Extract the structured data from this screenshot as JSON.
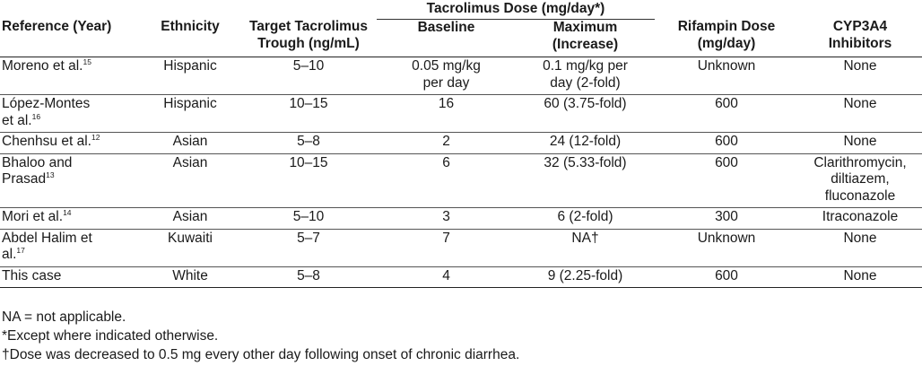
{
  "headers": {
    "reference": "Reference (Year)",
    "ethnicity": "Ethnicity",
    "target": "Target Tacrolimus Trough (ng/mL)",
    "dose_group": "Tacrolimus Dose (mg/day*)",
    "baseline": "Baseline",
    "maximum": "Maximum (Increase)",
    "rifampin": "Rifampin Dose (mg/day)",
    "cyp": "CYP3A4 Inhibitors"
  },
  "rows": [
    {
      "ref": "Moreno et al.",
      "sup": "15",
      "ethnicity": "Hispanic",
      "target": "5–10",
      "baseline": "0.05 mg/kg per day",
      "maximum": "0.1 mg/kg per day (2-fold)",
      "rifampin": "Unknown",
      "cyp": "None"
    },
    {
      "ref": "López-Montes et al.",
      "sup": "16",
      "ethnicity": "Hispanic",
      "target": "10–15",
      "baseline": "16",
      "maximum": "60 (3.75-fold)",
      "rifampin": "600",
      "cyp": "None"
    },
    {
      "ref": "Chenhsu et al.",
      "sup": "12",
      "ethnicity": "Asian",
      "target": "5–8",
      "baseline": "2",
      "maximum": "24 (12-fold)",
      "rifampin": "600",
      "cyp": "None"
    },
    {
      "ref": "Bhaloo and Prasad",
      "sup": "13",
      "ethnicity": "Asian",
      "target": "10–15",
      "baseline": "6",
      "maximum": "32 (5.33-fold)",
      "rifampin": "600",
      "cyp": "Clarithromycin, diltiazem, fluconazole"
    },
    {
      "ref": "Mori et al.",
      "sup": "14",
      "ethnicity": "Asian",
      "target": "5–10",
      "baseline": "3",
      "maximum": "6 (2-fold)",
      "rifampin": "300",
      "cyp": "Itraconazole"
    },
    {
      "ref": "Abdel Halim et al.",
      "sup": "17",
      "ethnicity": "Kuwaiti",
      "target": "5–7",
      "baseline": "7",
      "maximum": "NA†",
      "rifampin": "Unknown",
      "cyp": "None"
    },
    {
      "ref": "This case",
      "sup": "",
      "ethnicity": "White",
      "target": "5–8",
      "baseline": "4",
      "maximum": "9 (2.25-fold)",
      "rifampin": "600",
      "cyp": "None"
    }
  ],
  "notes": [
    "NA = not applicable.",
    "*Except where indicated otherwise.",
    "†Dose was decreased to 0.5 mg every other day following onset of chronic diarrhea."
  ]
}
